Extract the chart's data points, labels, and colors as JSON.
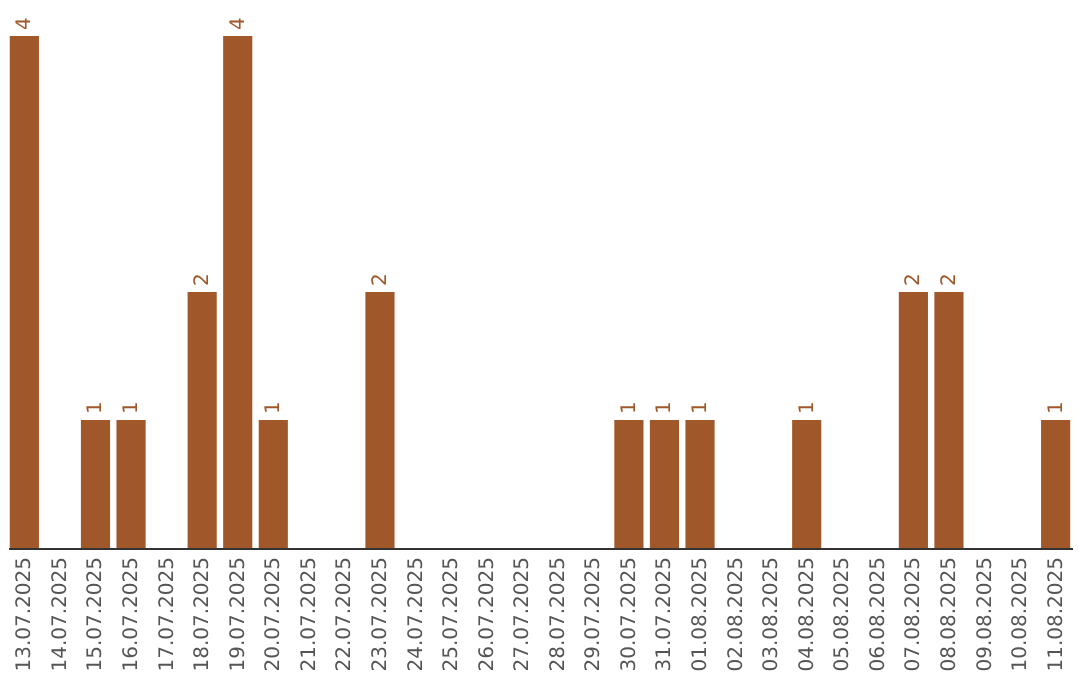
{
  "chart_data": {
    "type": "bar",
    "categories": [
      "13.07.2025",
      "14.07.2025",
      "15.07.2025",
      "16.07.2025",
      "17.07.2025",
      "18.07.2025",
      "19.07.2025",
      "20.07.2025",
      "21.07.2025",
      "22.07.2025",
      "23.07.2025",
      "24.07.2025",
      "25.07.2025",
      "26.07.2025",
      "27.07.2025",
      "28.07.2025",
      "29.07.2025",
      "30.07.2025",
      "31.07.2025",
      "01.08.2025",
      "02.08.2025",
      "03.08.2025",
      "04.08.2025",
      "05.08.2025",
      "06.08.2025",
      "07.08.2025",
      "08.08.2025",
      "09.08.2025",
      "10.08.2025",
      "11.08.2025"
    ],
    "values": [
      4,
      0,
      1,
      1,
      0,
      2,
      4,
      1,
      0,
      0,
      2,
      0,
      0,
      0,
      0,
      0,
      0,
      1,
      1,
      1,
      0,
      0,
      1,
      0,
      0,
      2,
      2,
      0,
      0,
      1
    ],
    "value_labels": [
      "4",
      null,
      "1",
      "1",
      null,
      "2",
      "4",
      "1",
      null,
      null,
      "2",
      null,
      null,
      null,
      null,
      null,
      null,
      "1",
      "1",
      "1",
      null,
      null,
      "1",
      null,
      null,
      "2",
      "2",
      null,
      null,
      "1"
    ],
    "color": "#a0582a",
    "grid": false
  }
}
